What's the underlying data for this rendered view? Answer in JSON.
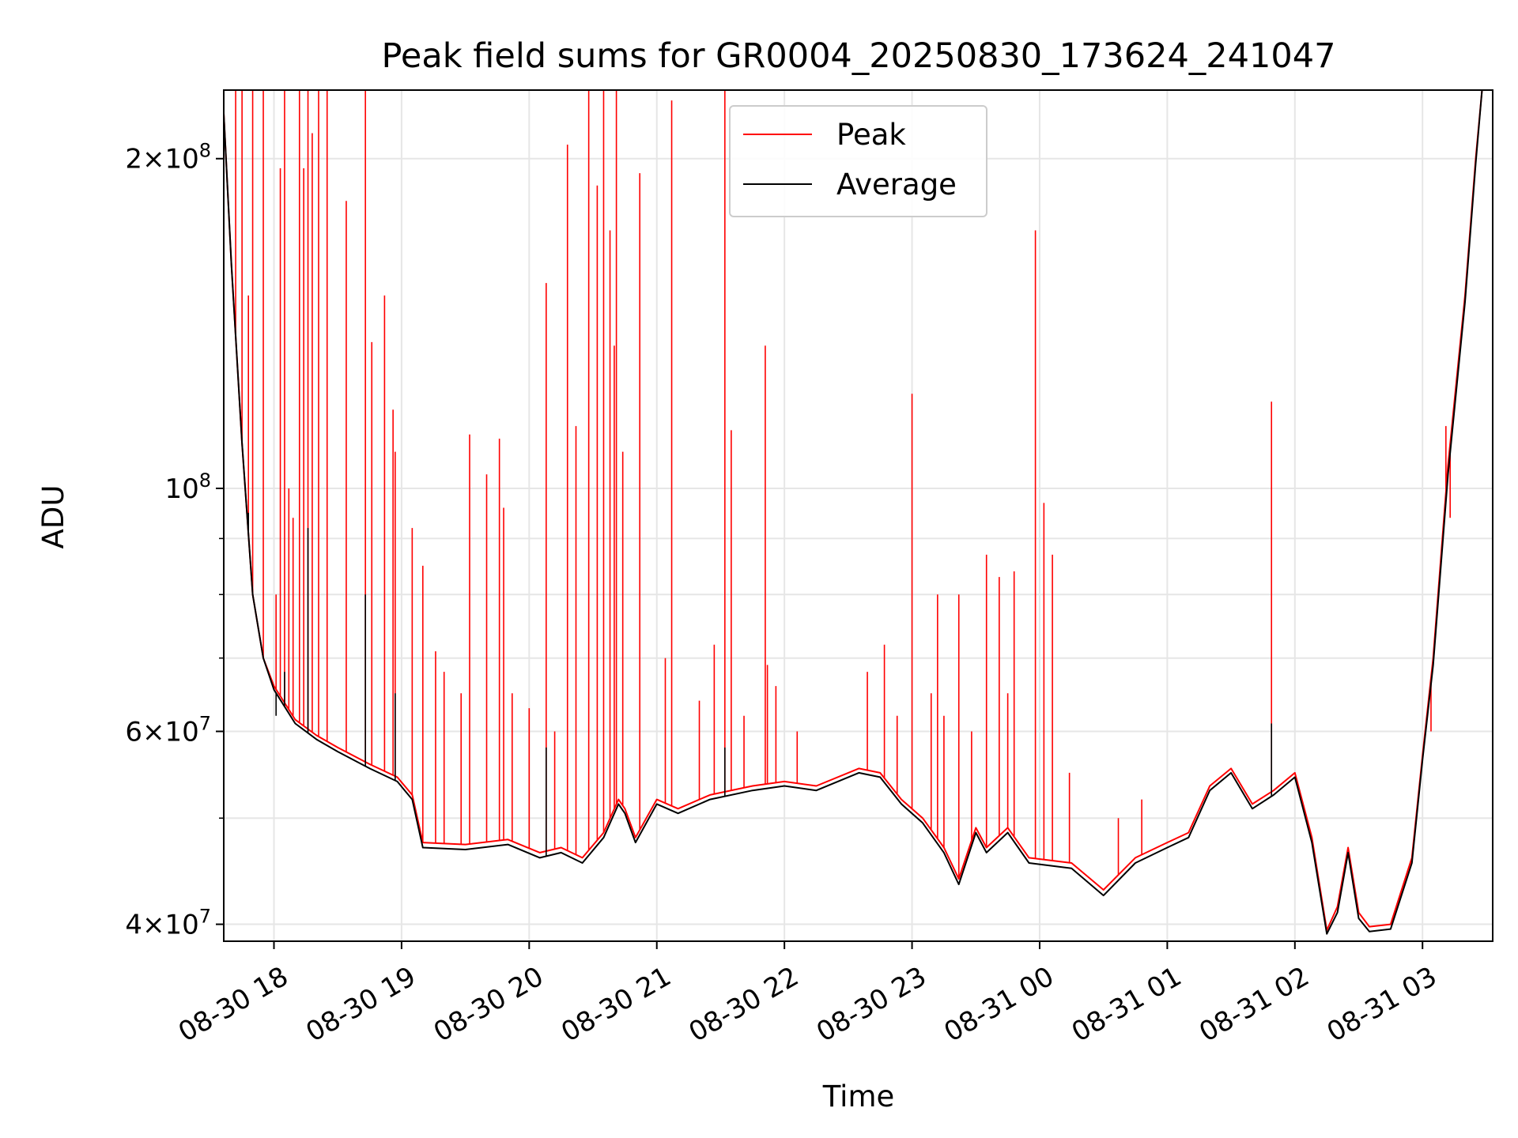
{
  "chart_data": {
    "type": "line",
    "title": "Peak field sums for GR0004_20250830_173624_241047",
    "xlabel": "Time",
    "ylabel": "ADU",
    "y_scale": "log",
    "ylim": [
      38600000,
      231000000
    ],
    "xlim": [
      "2025-08-30T17:36:24",
      "2025-08-31T03:33:00"
    ],
    "x_ticks": [
      "2025-08-30T18:00",
      "2025-08-30T19:00",
      "2025-08-30T20:00",
      "2025-08-30T21:00",
      "2025-08-30T22:00",
      "2025-08-30T23:00",
      "2025-08-31T00:00",
      "2025-08-31T01:00",
      "2025-08-31T02:00",
      "2025-08-31T03:00"
    ],
    "x_tick_labels": [
      "08-30 18",
      "08-30 19",
      "08-30 20",
      "08-30 21",
      "08-30 22",
      "08-30 23",
      "08-31 00",
      "08-31 01",
      "08-31 02",
      "08-31 03"
    ],
    "y_ticks": [
      {
        "value": 40000000,
        "mantissa": "4",
        "exponent": "7"
      },
      {
        "value": 60000000,
        "mantissa": "6",
        "exponent": "7"
      },
      {
        "value": 100000000,
        "mantissa": "",
        "exponent": "8"
      },
      {
        "value": 200000000,
        "mantissa": "2",
        "exponent": "8"
      }
    ],
    "y_minor_ticks": [
      50000000,
      70000000,
      80000000,
      90000000
    ],
    "grid": true,
    "legend_position": "upper-center",
    "series": [
      {
        "name": "Peak",
        "color": "#ff0000",
        "baseline": [
          [
            "2025-08-30T17:36:24",
            220000000
          ],
          [
            "2025-08-30T17:40",
            160000000
          ],
          [
            "2025-08-30T17:45",
            110000000
          ],
          [
            "2025-08-30T17:50",
            80000000
          ],
          [
            "2025-08-30T17:55",
            70000000
          ],
          [
            "2025-08-30T18:00",
            66000000
          ],
          [
            "2025-08-30T18:10",
            61500000
          ],
          [
            "2025-08-30T18:20",
            59500000
          ],
          [
            "2025-08-30T18:30",
            58000000
          ],
          [
            "2025-08-30T18:45",
            56000000
          ],
          [
            "2025-08-30T18:58",
            54500000
          ],
          [
            "2025-08-30T19:05",
            52500000
          ],
          [
            "2025-08-30T19:10",
            47500000
          ],
          [
            "2025-08-30T19:30",
            47300000
          ],
          [
            "2025-08-30T19:50",
            47800000
          ],
          [
            "2025-08-30T20:05",
            46500000
          ],
          [
            "2025-08-30T20:15",
            47000000
          ],
          [
            "2025-08-30T20:25",
            46000000
          ],
          [
            "2025-08-30T20:35",
            48500000
          ],
          [
            "2025-08-30T20:42",
            52000000
          ],
          [
            "2025-08-30T20:45",
            51000000
          ],
          [
            "2025-08-30T20:50",
            48000000
          ],
          [
            "2025-08-30T21:00",
            52000000
          ],
          [
            "2025-08-30T21:10",
            51000000
          ],
          [
            "2025-08-30T21:25",
            52500000
          ],
          [
            "2025-08-30T21:45",
            53500000
          ],
          [
            "2025-08-30T22:00",
            54000000
          ],
          [
            "2025-08-30T22:15",
            53500000
          ],
          [
            "2025-08-30T22:35",
            55500000
          ],
          [
            "2025-08-30T22:45",
            55000000
          ],
          [
            "2025-08-30T22:55",
            52000000
          ],
          [
            "2025-08-30T23:05",
            50000000
          ],
          [
            "2025-08-30T23:15",
            47000000
          ],
          [
            "2025-08-30T23:22",
            44000000
          ],
          [
            "2025-08-30T23:30",
            49000000
          ],
          [
            "2025-08-30T23:35",
            47000000
          ],
          [
            "2025-08-30T23:45",
            49000000
          ],
          [
            "2025-08-30T23:55",
            46000000
          ],
          [
            "2025-08-31T00:15",
            45500000
          ],
          [
            "2025-08-31T00:30",
            43000000
          ],
          [
            "2025-08-31T00:45",
            46000000
          ],
          [
            "2025-08-31T01:00",
            47500000
          ],
          [
            "2025-08-31T01:10",
            48500000
          ],
          [
            "2025-08-31T01:20",
            53500000
          ],
          [
            "2025-08-31T01:30",
            55500000
          ],
          [
            "2025-08-31T01:40",
            51500000
          ],
          [
            "2025-08-31T01:50",
            53000000
          ],
          [
            "2025-08-31T02:00",
            55000000
          ],
          [
            "2025-08-31T02:08",
            48000000
          ],
          [
            "2025-08-31T02:15",
            39500000
          ],
          [
            "2025-08-31T02:20",
            41500000
          ],
          [
            "2025-08-31T02:25",
            47000000
          ],
          [
            "2025-08-31T02:30",
            41000000
          ],
          [
            "2025-08-31T02:35",
            39800000
          ],
          [
            "2025-08-31T02:45",
            40000000
          ],
          [
            "2025-08-31T02:55",
            46000000
          ],
          [
            "2025-08-31T03:00",
            57000000
          ],
          [
            "2025-08-31T03:05",
            70000000
          ],
          [
            "2025-08-31T03:12",
            105000000
          ],
          [
            "2025-08-31T03:20",
            150000000
          ],
          [
            "2025-08-31T03:25",
            200000000
          ],
          [
            "2025-08-31T03:28",
            231000000
          ],
          [
            "2025-08-31T03:33",
            231000000
          ]
        ],
        "spikes": [
          [
            "2025-08-30T17:42",
            231000000
          ],
          [
            "2025-08-30T17:45",
            231000000
          ],
          [
            "2025-08-30T17:48",
            150000000
          ],
          [
            "2025-08-30T17:50",
            231000000
          ],
          [
            "2025-08-30T17:55",
            231000000
          ],
          [
            "2025-08-30T18:01",
            80000000
          ],
          [
            "2025-08-30T18:03",
            196000000
          ],
          [
            "2025-08-30T18:05",
            231000000
          ],
          [
            "2025-08-30T18:07",
            100000000
          ],
          [
            "2025-08-30T18:09",
            94000000
          ],
          [
            "2025-08-30T18:12",
            231000000
          ],
          [
            "2025-08-30T18:14",
            196000000
          ],
          [
            "2025-08-30T18:16",
            231000000
          ],
          [
            "2025-08-30T18:18",
            211000000
          ],
          [
            "2025-08-30T18:21",
            231000000
          ],
          [
            "2025-08-30T18:25",
            231000000
          ],
          [
            "2025-08-30T18:34",
            183000000
          ],
          [
            "2025-08-30T18:43",
            231000000
          ],
          [
            "2025-08-30T18:46",
            136000000
          ],
          [
            "2025-08-30T18:52",
            150000000
          ],
          [
            "2025-08-30T18:56",
            118000000
          ],
          [
            "2025-08-30T18:57",
            108000000
          ],
          [
            "2025-08-30T19:05",
            92000000
          ],
          [
            "2025-08-30T19:10",
            85000000
          ],
          [
            "2025-08-30T19:16",
            71000000
          ],
          [
            "2025-08-30T19:20",
            68000000
          ],
          [
            "2025-08-30T19:28",
            65000000
          ],
          [
            "2025-08-30T19:32",
            112000000
          ],
          [
            "2025-08-30T19:40",
            103000000
          ],
          [
            "2025-08-30T19:46",
            111000000
          ],
          [
            "2025-08-30T19:48",
            96000000
          ],
          [
            "2025-08-30T19:52",
            65000000
          ],
          [
            "2025-08-30T20:00",
            63000000
          ],
          [
            "2025-08-30T20:08",
            154000000
          ],
          [
            "2025-08-30T20:12",
            60000000
          ],
          [
            "2025-08-30T20:18",
            206000000
          ],
          [
            "2025-08-30T20:22",
            114000000
          ],
          [
            "2025-08-30T20:28",
            231000000
          ],
          [
            "2025-08-30T20:32",
            189000000
          ],
          [
            "2025-08-30T20:35",
            231000000
          ],
          [
            "2025-08-30T20:38",
            172000000
          ],
          [
            "2025-08-30T20:40",
            135000000
          ],
          [
            "2025-08-30T20:41",
            231000000
          ],
          [
            "2025-08-30T20:44",
            108000000
          ],
          [
            "2025-08-30T20:52",
            194000000
          ],
          [
            "2025-08-30T21:04",
            70000000
          ],
          [
            "2025-08-30T21:07",
            226000000
          ],
          [
            "2025-08-30T21:20",
            64000000
          ],
          [
            "2025-08-30T21:27",
            72000000
          ],
          [
            "2025-08-30T21:32",
            231000000
          ],
          [
            "2025-08-30T21:35",
            113000000
          ],
          [
            "2025-08-30T21:41",
            62000000
          ],
          [
            "2025-08-30T21:51",
            135000000
          ],
          [
            "2025-08-30T21:52",
            69000000
          ],
          [
            "2025-08-30T21:56",
            66000000
          ],
          [
            "2025-08-30T22:06",
            60000000
          ],
          [
            "2025-08-30T22:39",
            68000000
          ],
          [
            "2025-08-30T22:47",
            72000000
          ],
          [
            "2025-08-30T22:53",
            62000000
          ],
          [
            "2025-08-30T23:00",
            122000000
          ],
          [
            "2025-08-30T23:09",
            65000000
          ],
          [
            "2025-08-30T23:12",
            80000000
          ],
          [
            "2025-08-30T23:15",
            62000000
          ],
          [
            "2025-08-30T23:22",
            80000000
          ],
          [
            "2025-08-30T23:28",
            60000000
          ],
          [
            "2025-08-30T23:35",
            87000000
          ],
          [
            "2025-08-30T23:41",
            83000000
          ],
          [
            "2025-08-30T23:45",
            65000000
          ],
          [
            "2025-08-30T23:48",
            84000000
          ],
          [
            "2025-08-30T23:58",
            172000000
          ],
          [
            "2025-08-31T00:02",
            97000000
          ],
          [
            "2025-08-31T00:06",
            87000000
          ],
          [
            "2025-08-31T00:14",
            55000000
          ],
          [
            "2025-08-31T00:37",
            50000000
          ],
          [
            "2025-08-31T00:48",
            52000000
          ],
          [
            "2025-08-31T01:49",
            120000000
          ],
          [
            "2025-08-31T03:04",
            60000000
          ],
          [
            "2025-08-31T03:11",
            114000000
          ],
          [
            "2025-08-31T03:13",
            94000000
          ]
        ]
      },
      {
        "name": "Average",
        "color": "#000000",
        "baseline": [
          [
            "2025-08-30T17:36:24",
            220000000
          ],
          [
            "2025-08-30T17:40",
            160000000
          ],
          [
            "2025-08-30T17:45",
            110000000
          ],
          [
            "2025-08-30T17:50",
            80000000
          ],
          [
            "2025-08-30T17:55",
            70000000
          ],
          [
            "2025-08-30T18:00",
            65500000
          ],
          [
            "2025-08-30T18:10",
            61000000
          ],
          [
            "2025-08-30T18:20",
            59000000
          ],
          [
            "2025-08-30T18:30",
            57500000
          ],
          [
            "2025-08-30T18:45",
            55500000
          ],
          [
            "2025-08-30T18:58",
            54000000
          ],
          [
            "2025-08-30T19:05",
            52000000
          ],
          [
            "2025-08-30T19:10",
            47000000
          ],
          [
            "2025-08-30T19:30",
            46800000
          ],
          [
            "2025-08-30T19:50",
            47300000
          ],
          [
            "2025-08-30T20:05",
            46000000
          ],
          [
            "2025-08-30T20:15",
            46500000
          ],
          [
            "2025-08-30T20:25",
            45500000
          ],
          [
            "2025-08-30T20:35",
            48000000
          ],
          [
            "2025-08-30T20:42",
            51500000
          ],
          [
            "2025-08-30T20:45",
            50500000
          ],
          [
            "2025-08-30T20:50",
            47500000
          ],
          [
            "2025-08-30T21:00",
            51500000
          ],
          [
            "2025-08-30T21:10",
            50500000
          ],
          [
            "2025-08-30T21:25",
            52000000
          ],
          [
            "2025-08-30T21:45",
            53000000
          ],
          [
            "2025-08-30T22:00",
            53500000
          ],
          [
            "2025-08-30T22:15",
            53000000
          ],
          [
            "2025-08-30T22:35",
            55000000
          ],
          [
            "2025-08-30T22:45",
            54500000
          ],
          [
            "2025-08-30T22:55",
            51500000
          ],
          [
            "2025-08-30T23:05",
            49500000
          ],
          [
            "2025-08-30T23:15",
            46500000
          ],
          [
            "2025-08-30T23:22",
            43500000
          ],
          [
            "2025-08-30T23:30",
            48500000
          ],
          [
            "2025-08-30T23:35",
            46500000
          ],
          [
            "2025-08-30T23:45",
            48500000
          ],
          [
            "2025-08-30T23:55",
            45500000
          ],
          [
            "2025-08-31T00:15",
            45000000
          ],
          [
            "2025-08-31T00:30",
            42500000
          ],
          [
            "2025-08-31T00:45",
            45500000
          ],
          [
            "2025-08-31T01:00",
            47000000
          ],
          [
            "2025-08-31T01:10",
            48000000
          ],
          [
            "2025-08-31T01:20",
            53000000
          ],
          [
            "2025-08-31T01:30",
            55000000
          ],
          [
            "2025-08-31T01:40",
            51000000
          ],
          [
            "2025-08-31T01:50",
            52500000
          ],
          [
            "2025-08-31T02:00",
            54500000
          ],
          [
            "2025-08-31T02:08",
            47500000
          ],
          [
            "2025-08-31T02:15",
            39200000
          ],
          [
            "2025-08-31T02:20",
            41000000
          ],
          [
            "2025-08-31T02:25",
            46500000
          ],
          [
            "2025-08-31T02:30",
            40500000
          ],
          [
            "2025-08-31T02:35",
            39400000
          ],
          [
            "2025-08-31T02:45",
            39600000
          ],
          [
            "2025-08-31T02:55",
            45500000
          ],
          [
            "2025-08-31T03:00",
            56500000
          ],
          [
            "2025-08-31T03:05",
            69000000
          ],
          [
            "2025-08-31T03:12",
            103000000
          ],
          [
            "2025-08-31T03:20",
            148000000
          ],
          [
            "2025-08-31T03:25",
            198000000
          ],
          [
            "2025-08-31T03:28",
            231000000
          ],
          [
            "2025-08-31T03:33",
            231000000
          ]
        ],
        "spikes": [
          [
            "2025-08-30T17:48",
            95000000
          ],
          [
            "2025-08-30T18:01",
            62000000
          ],
          [
            "2025-08-30T18:05",
            68000000
          ],
          [
            "2025-08-30T18:16",
            92000000
          ],
          [
            "2025-08-30T18:43",
            80000000
          ],
          [
            "2025-08-30T18:57",
            65000000
          ],
          [
            "2025-08-30T20:08",
            58000000
          ],
          [
            "2025-08-30T21:32",
            58000000
          ],
          [
            "2025-08-31T01:49",
            61000000
          ]
        ]
      }
    ]
  }
}
